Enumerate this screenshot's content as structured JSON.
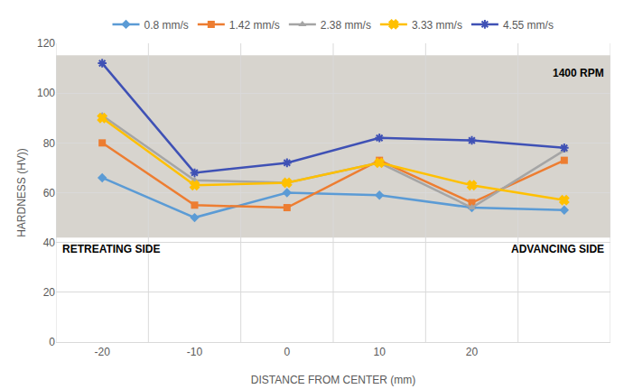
{
  "chart_data": {
    "type": "line",
    "x_label": "DISTANCE FROM CENTER (mm)",
    "y_label": "HARDNESS (HV))",
    "categories": [
      "-20",
      "-10",
      "0",
      "10",
      "20",
      null
    ],
    "series": [
      {
        "name": "0.8 mm/s",
        "color": "#5b9bd5",
        "marker": "diamond",
        "values": [
          66,
          50,
          60,
          59,
          54,
          53
        ]
      },
      {
        "name": "1.42 mm/s",
        "color": "#ed7d31",
        "marker": "square",
        "values": [
          80,
          55,
          54,
          73,
          56,
          73
        ]
      },
      {
        "name": "2.38 mm/s",
        "color": "#a5a5a5",
        "marker": "triangle-up",
        "values": [
          91,
          65,
          64,
          72,
          54,
          77
        ]
      },
      {
        "name": "3.33 mm/s",
        "color": "#ffc000",
        "marker": "x",
        "values": [
          90,
          63,
          64,
          72,
          63,
          57
        ]
      },
      {
        "name": "4.55 mm/s",
        "color": "#3f51b5",
        "marker": "asterisk",
        "values": [
          112,
          68,
          72,
          82,
          81,
          78
        ]
      }
    ],
    "ylim": [
      0,
      120
    ],
    "yticks": [
      0,
      20,
      40,
      60,
      80,
      100,
      120
    ],
    "grid": true,
    "legend": "top",
    "annotations": [
      "RETREATING SIDE",
      "ADVANCING SIDE",
      "1400 RPM"
    ]
  }
}
